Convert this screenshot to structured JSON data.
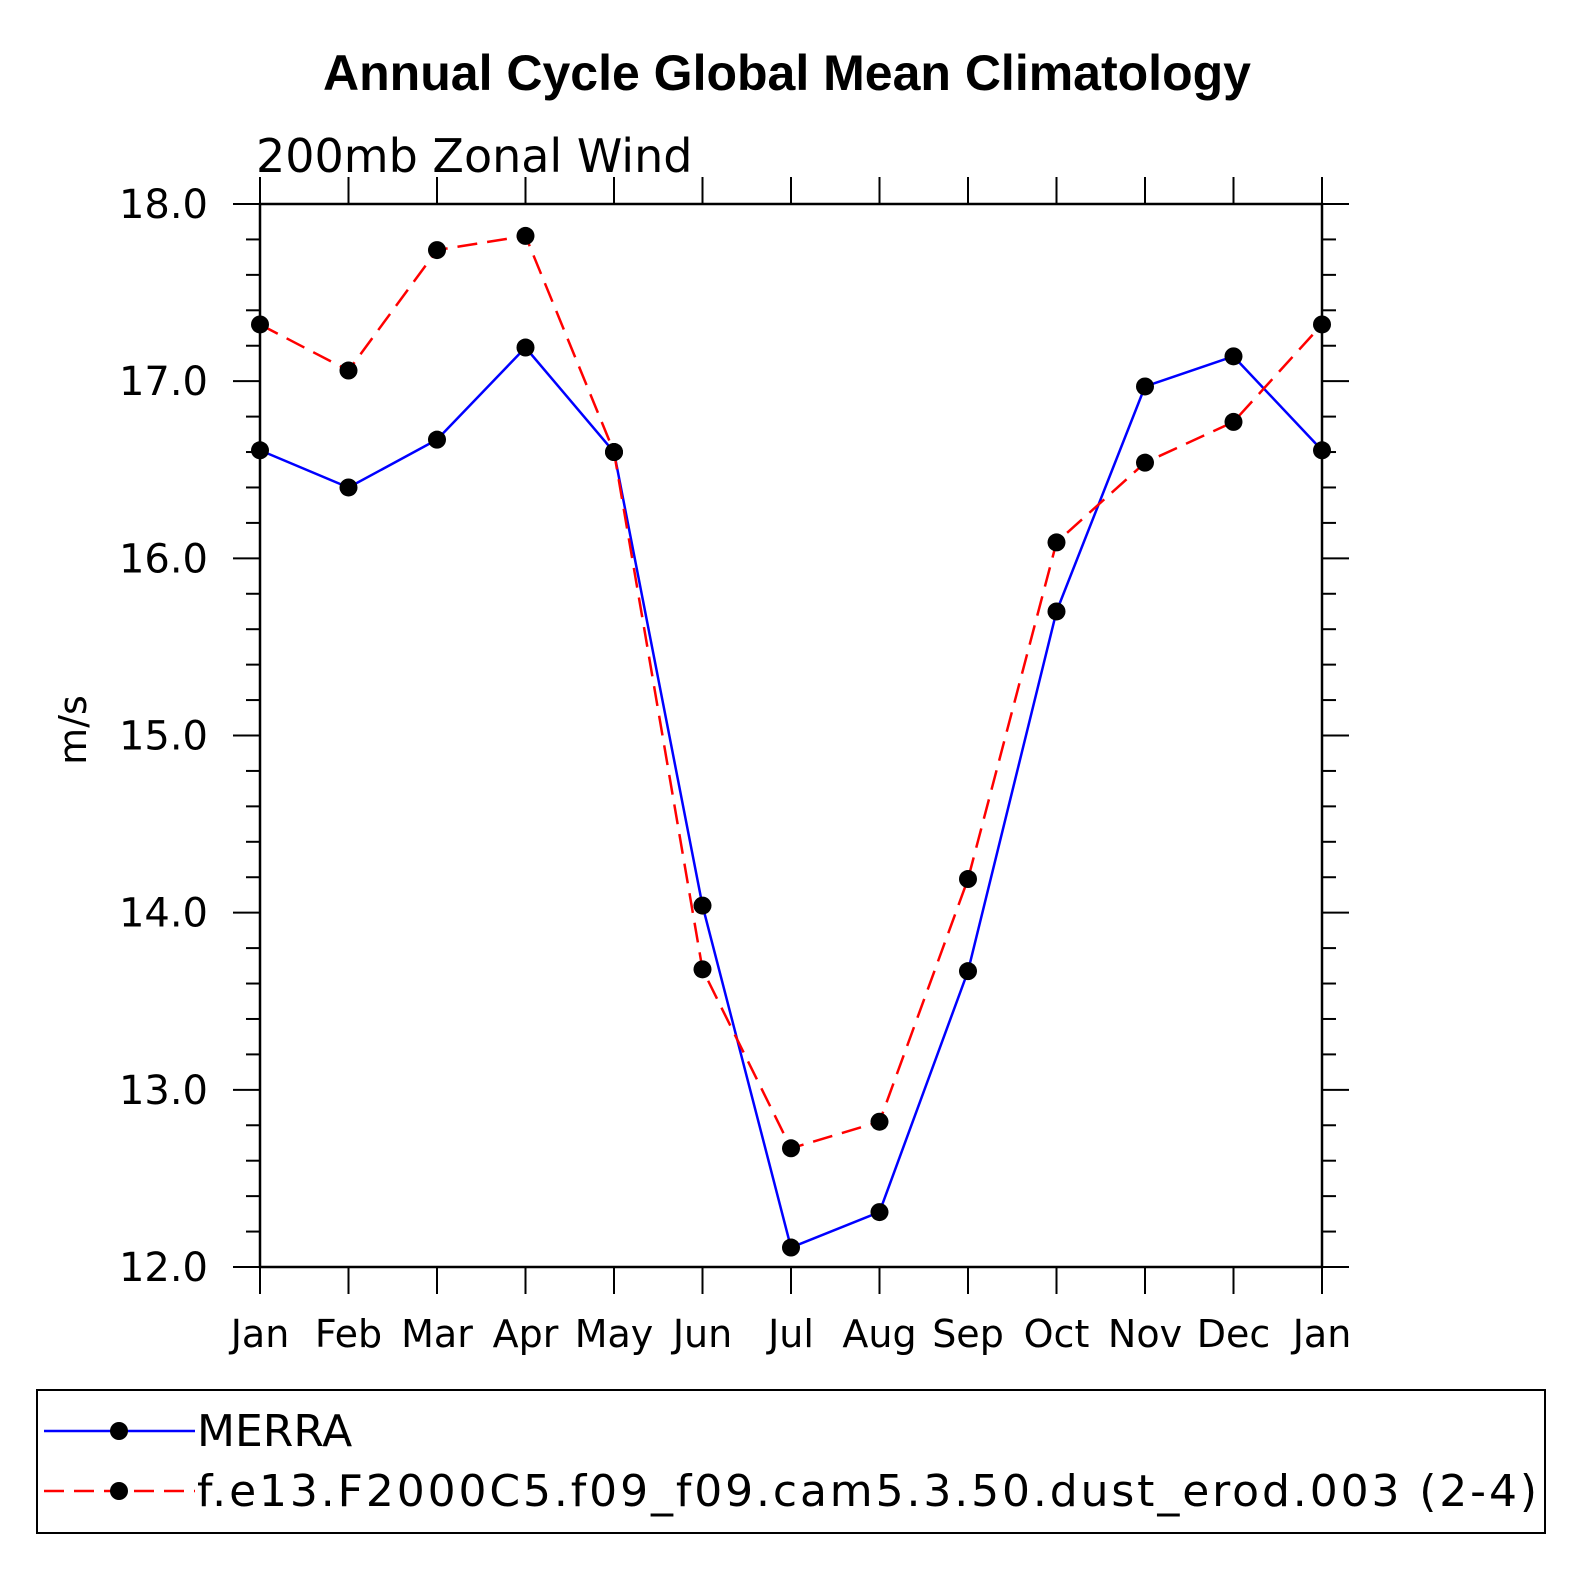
{
  "chart_data": {
    "type": "line",
    "title": "Annual Cycle Global Mean Climatology",
    "subtitle": "200mb Zonal Wind",
    "ylabel": "m/s",
    "xlabel": "",
    "categories": [
      "Jan",
      "Feb",
      "Mar",
      "Apr",
      "May",
      "Jun",
      "Jul",
      "Aug",
      "Sep",
      "Oct",
      "Nov",
      "Dec",
      "Jan"
    ],
    "ylim": [
      12.0,
      18.0
    ],
    "yticks": [
      "12.0",
      "13.0",
      "14.0",
      "15.0",
      "16.0",
      "17.0",
      "18.0"
    ],
    "grid": false,
    "legend_position": "bottom",
    "series": [
      {
        "name": "MERRA",
        "color": "#0000ff",
        "style": "solid",
        "values": [
          16.61,
          16.4,
          16.67,
          17.19,
          16.6,
          14.04,
          12.11,
          12.31,
          13.67,
          15.7,
          16.97,
          17.14,
          16.61
        ]
      },
      {
        "name": "f.e13.F2000C5.f09_f09.cam5.3.50.dust_erod.003 (2-4)",
        "color": "#ff0000",
        "style": "dashed",
        "values": [
          17.32,
          17.06,
          17.74,
          17.82,
          16.6,
          13.68,
          12.67,
          12.82,
          14.19,
          16.09,
          16.54,
          16.77,
          17.32
        ]
      }
    ]
  }
}
